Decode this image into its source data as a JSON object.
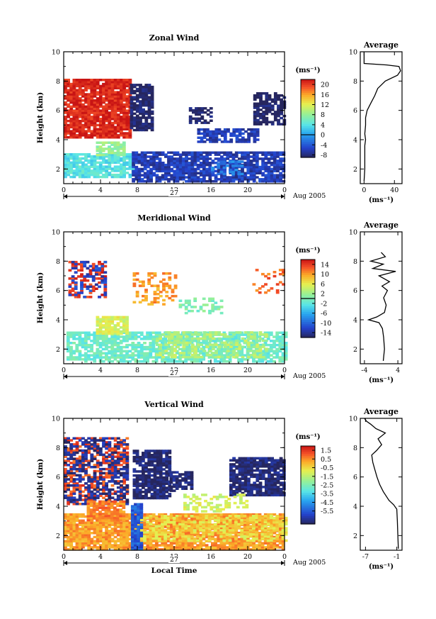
{
  "chart_data": [
    {
      "id": "zonal",
      "type": "heatmap",
      "title": "Zonal Wind",
      "ylabel": "Height (km)",
      "xlim": [
        0,
        24
      ],
      "ylim": [
        1,
        10
      ],
      "xticks": [
        "0",
        "4",
        "8",
        "12",
        "16",
        "20",
        "0"
      ],
      "yticks": [
        "2",
        "4",
        "6",
        "8",
        "10"
      ],
      "date_label": "27",
      "month_label": "Aug 2005",
      "colorbar": {
        "unit": "(ms⁻¹)",
        "min": -9,
        "max": 22,
        "ticks": [
          "20",
          "16",
          "12",
          "8",
          "4",
          "0",
          "-4",
          "-8"
        ],
        "tick_values": [
          20,
          16,
          12,
          8,
          4,
          0,
          -4,
          -8
        ],
        "contour": 0
      },
      "regions": [
        {
          "x": [
            0,
            7.1
          ],
          "y": [
            4.1,
            8.1
          ],
          "value": 21,
          "density": 0.9
        },
        {
          "x": [
            7.2,
            9.6
          ],
          "y": [
            4.6,
            7.8
          ],
          "value": -9,
          "density": 0.85
        },
        {
          "x": [
            13.6,
            16.0
          ],
          "y": [
            5.1,
            6.1
          ],
          "value": -9,
          "density": 0.55
        },
        {
          "x": [
            20.6,
            23.9
          ],
          "y": [
            5.0,
            7.2
          ],
          "value": -9,
          "density": 0.7
        },
        {
          "x": [
            14.5,
            21.0
          ],
          "y": [
            3.8,
            4.7
          ],
          "value": -6,
          "density": 0.7
        },
        {
          "x": [
            0,
            7.4
          ],
          "y": [
            1.4,
            3.0
          ],
          "value": 4,
          "density": 0.85
        },
        {
          "x": [
            3.5,
            6.5
          ],
          "y": [
            2.9,
            3.8
          ],
          "value": 8,
          "density": 0.8
        },
        {
          "x": [
            7.4,
            24
          ],
          "y": [
            1.1,
            3.2
          ],
          "value": -6,
          "density": 0.8
        },
        {
          "x": [
            16.0,
            19.5
          ],
          "y": [
            1.6,
            2.5
          ],
          "value": -2,
          "density": 0.5
        }
      ],
      "average_profile": {
        "title": "Average",
        "xlabel": "(ms⁻¹)",
        "xlim": [
          -5,
          50
        ],
        "xticks": [
          "0",
          "40"
        ],
        "xtick_values": [
          0,
          40
        ],
        "heights": [
          1.2,
          2,
          3,
          3.6,
          4,
          4.4,
          5,
          5.5,
          6,
          6.5,
          7,
          7.5,
          8,
          8.4,
          8.7,
          9,
          9.1,
          9.2,
          9.5,
          10
        ],
        "values": [
          0,
          1,
          1,
          1,
          2,
          1,
          2,
          2,
          4,
          9,
          14,
          18,
          28,
          44,
          48,
          46,
          30,
          0,
          0,
          0
        ]
      }
    },
    {
      "id": "meridional",
      "type": "heatmap",
      "title": "Meridional Wind",
      "ylabel": "Height (km)",
      "xlim": [
        0,
        24
      ],
      "ylim": [
        1,
        10
      ],
      "xticks": [
        "0",
        "4",
        "8",
        "12",
        "16",
        "20",
        "0"
      ],
      "yticks": [
        "2",
        "4",
        "6",
        "8",
        "10"
      ],
      "date_label": "27",
      "month_label": "Aug 2005",
      "colorbar": {
        "unit": "(ms⁻¹)",
        "min": -16,
        "max": 16,
        "ticks": [
          "14",
          "10",
          "6",
          "2",
          "-2",
          "-6",
          "-10",
          "-14"
        ],
        "tick_values": [
          14,
          10,
          6,
          2,
          -2,
          -6,
          -10,
          -14
        ],
        "contour": 0
      },
      "regions": [
        {
          "x": [
            0.5,
            4.5
          ],
          "y": [
            5.5,
            8.0
          ],
          "value": 14,
          "density": 0.35
        },
        {
          "x": [
            0.5,
            4.5
          ],
          "y": [
            5.5,
            8.0
          ],
          "value": -12,
          "density": 0.2
        },
        {
          "x": [
            7.5,
            12
          ],
          "y": [
            5.0,
            7.2
          ],
          "value": 10,
          "density": 0.3
        },
        {
          "x": [
            20.5,
            24
          ],
          "y": [
            5.8,
            7.4
          ],
          "value": 12,
          "density": 0.35
        },
        {
          "x": [
            12.5,
            17
          ],
          "y": [
            4.4,
            5.4
          ],
          "value": 0,
          "density": 0.35
        },
        {
          "x": [
            0.3,
            24
          ],
          "y": [
            1.1,
            3.2
          ],
          "value": -1,
          "density": 0.75
        },
        {
          "x": [
            3.5,
            6.8
          ],
          "y": [
            3.0,
            4.2
          ],
          "value": 5,
          "density": 0.8
        },
        {
          "x": [
            10,
            22
          ],
          "y": [
            1.4,
            3.2
          ],
          "value": 3,
          "density": 0.45
        }
      ],
      "average_profile": {
        "title": "Average",
        "xlabel": "(ms⁻¹)",
        "xlim": [
          -5,
          5
        ],
        "xticks": [
          "-4",
          "4"
        ],
        "xtick_values": [
          -4,
          4
        ],
        "heights": [
          1.2,
          2,
          2.8,
          3.4,
          3.8,
          4.0,
          4.2,
          4.5,
          5,
          5.5,
          6,
          6.3,
          6.6,
          7,
          7.3,
          7.5,
          7.8,
          8.0,
          8.3,
          8.6
        ],
        "values": [
          0.5,
          0.8,
          0.6,
          0.3,
          -0.5,
          -3.0,
          -1.0,
          0.8,
          1.2,
          0.6,
          1.5,
          0.2,
          2.0,
          -0.5,
          3.5,
          -2.0,
          0.5,
          -2.5,
          1.0,
          0
        ]
      }
    },
    {
      "id": "vertical",
      "type": "heatmap",
      "title": "Vertical Wind",
      "ylabel": "Height (km)",
      "xlabel": "Local Time",
      "xlim": [
        0,
        24
      ],
      "ylim": [
        1,
        10
      ],
      "xticks": [
        "0",
        "4",
        "8",
        "12",
        "16",
        "20",
        "0"
      ],
      "yticks": [
        "2",
        "4",
        "6",
        "8",
        "10"
      ],
      "date_label": "27",
      "month_label": "Aug 2005",
      "colorbar": {
        "unit": "(ms⁻¹)",
        "min": -7,
        "max": 2,
        "ticks": [
          "1.5",
          "0.5",
          "-0.5",
          "-1.5",
          "-2.5",
          "-3.5",
          "-4.5",
          "-5.5"
        ],
        "tick_values": [
          1.5,
          0.5,
          -0.5,
          -1.5,
          -2.5,
          -3.5,
          -4.5,
          -5.5
        ]
      },
      "regions": [
        {
          "x": [
            0,
            7.0
          ],
          "y": [
            4.1,
            8.6
          ],
          "value": 1.2,
          "density": 0.5
        },
        {
          "x": [
            0,
            7.0
          ],
          "y": [
            4.1,
            8.6
          ],
          "value": -6.5,
          "density": 0.45
        },
        {
          "x": [
            7.5,
            11.5
          ],
          "y": [
            4.5,
            7.8
          ],
          "value": -6.8,
          "density": 0.85
        },
        {
          "x": [
            11.5,
            13.8
          ],
          "y": [
            5.0,
            6.3
          ],
          "value": -6.8,
          "density": 0.7
        },
        {
          "x": [
            18.0,
            24
          ],
          "y": [
            4.7,
            7.3
          ],
          "value": -6.8,
          "density": 0.85
        },
        {
          "x": [
            13,
            20
          ],
          "y": [
            3.6,
            4.8
          ],
          "value": -1.2,
          "density": 0.4
        },
        {
          "x": [
            0,
            24
          ],
          "y": [
            1.0,
            3.5
          ],
          "value": 0.3,
          "density": 0.9
        },
        {
          "x": [
            2.5,
            6.5
          ],
          "y": [
            3.0,
            4.4
          ],
          "value": 0.6,
          "density": 0.85
        },
        {
          "x": [
            7.3,
            8.3
          ],
          "y": [
            1.0,
            4.2
          ],
          "value": -5.5,
          "density": 0.95
        },
        {
          "x": [
            8.3,
            24
          ],
          "y": [
            1.6,
            3.4
          ],
          "value": -0.6,
          "density": 0.5
        }
      ],
      "average_profile": {
        "title": "Average",
        "xlabel": "(ms⁻¹)",
        "xlim": [
          -8,
          0
        ],
        "xticks": [
          "-7",
          "-1"
        ],
        "xtick_values": [
          -7,
          -1
        ],
        "heights": [
          1.1,
          2,
          3,
          3.8,
          4.1,
          4.4,
          5,
          5.5,
          6,
          6.5,
          7,
          7.5,
          7.8,
          8.2,
          8.6,
          9.0,
          9.3,
          9.6,
          9.8,
          10
        ],
        "values": [
          -0.7,
          -0.8,
          -0.9,
          -1.0,
          -1.6,
          -2.5,
          -3.6,
          -4.3,
          -4.8,
          -5.2,
          -5.6,
          -5.8,
          -4.9,
          -3.9,
          -4.6,
          -3.2,
          -5.0,
          -6.0,
          -6.8,
          -7.2
        ]
      }
    }
  ]
}
